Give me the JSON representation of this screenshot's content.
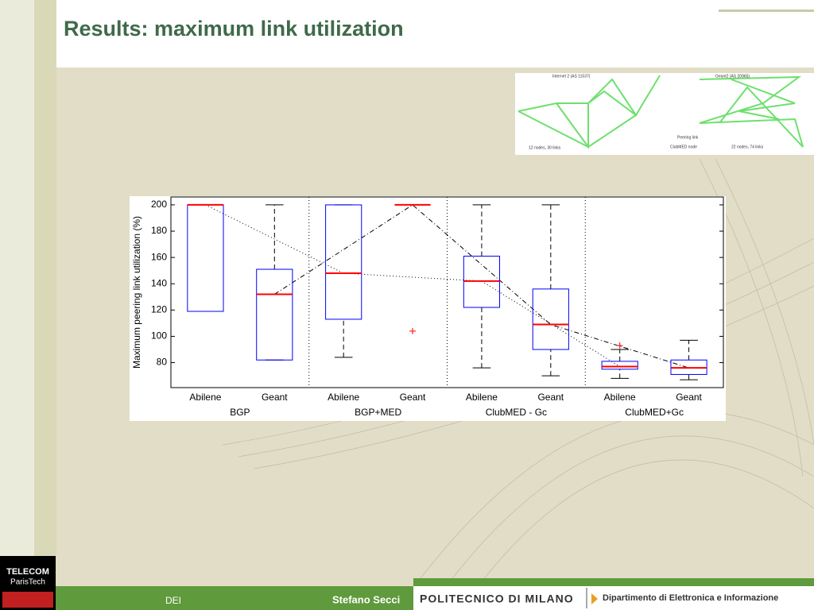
{
  "slide": {
    "title": "Results: maximum link utilization",
    "footer_left": "DEI",
    "footer_author": "Stefano Secci",
    "logo_left_1": "TELECOM",
    "logo_left_2": "ParisTech",
    "logo_right_1": "POLITECNICO DI MILANO",
    "logo_right_2": "Dipartimento di Elettronica e Informazione"
  },
  "network_figure": {
    "left_title": "Internet 2 (AS 11537)",
    "right_title": "Geant2 (AS 20965)",
    "legend_1": "Peering link",
    "legend_2": "ClubMED node",
    "left_caption": "12 nodes, 30 links",
    "right_caption": "22 nodes, 74 links"
  },
  "chart_data": {
    "type": "box",
    "ylabel": "Maximum peering link utilization (%)",
    "categories": [
      "Abilene",
      "Geant",
      "Abilene",
      "Geant",
      "Abilene",
      "Geant",
      "Abilene",
      "Geant"
    ],
    "groups": [
      "BGP",
      "BGP+MED",
      "ClubMED - Gc",
      "ClubMED+Gc"
    ],
    "boxes": [
      {
        "min": 119,
        "q1": 119,
        "median": 200,
        "q3": 200,
        "max": 200
      },
      {
        "min": 82,
        "q1": 82,
        "median": 132,
        "q3": 151,
        "max": 200
      },
      {
        "min": 84,
        "q1": 113,
        "median": 148,
        "q3": 200,
        "max": 200
      },
      {
        "min": 200,
        "q1": 200,
        "median": 200,
        "q3": 200,
        "max": 200,
        "outliers": [
          104
        ]
      },
      {
        "min": 76,
        "q1": 122,
        "median": 142,
        "q3": 161,
        "max": 200
      },
      {
        "min": 70,
        "q1": 90,
        "median": 109,
        "q3": 136,
        "max": 200
      },
      {
        "min": 68,
        "q1": 75,
        "median": 77,
        "q3": 81,
        "max": 90,
        "outliers": [
          93
        ]
      },
      {
        "min": 67,
        "q1": 71,
        "median": 76,
        "q3": 82,
        "max": 97
      }
    ],
    "box_color": "#0000ff",
    "median_color": "#ff0000",
    "median_link_styles": [
      "dotted",
      "dash-dot"
    ],
    "ylim": [
      61,
      206
    ],
    "yticks": [
      80,
      100,
      120,
      140,
      160,
      180,
      200
    ]
  }
}
